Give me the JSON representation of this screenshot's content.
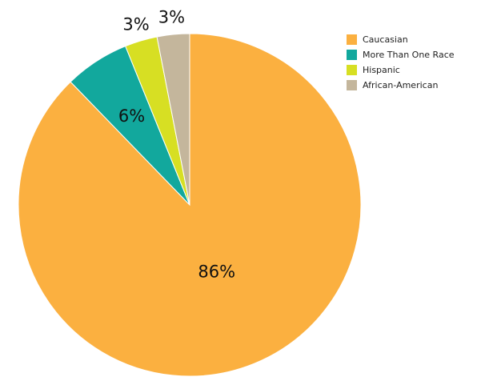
{
  "chart_data": {
    "type": "pie",
    "title": "",
    "legend_position": "top-right",
    "start_angle_deg": 0,
    "direction": "clockwise",
    "slices": [
      {
        "label": "Caucasian",
        "value": 86,
        "display": "86%",
        "color": "#FBB040"
      },
      {
        "label": "More Than One Race",
        "value": 6,
        "display": "6%",
        "color": "#12A89D"
      },
      {
        "label": "Hispanic",
        "value": 3,
        "display": "3%",
        "color": "#D7DF23"
      },
      {
        "label": "African-American",
        "value": 3,
        "display": "3%",
        "color": "#C4B69C"
      }
    ]
  }
}
